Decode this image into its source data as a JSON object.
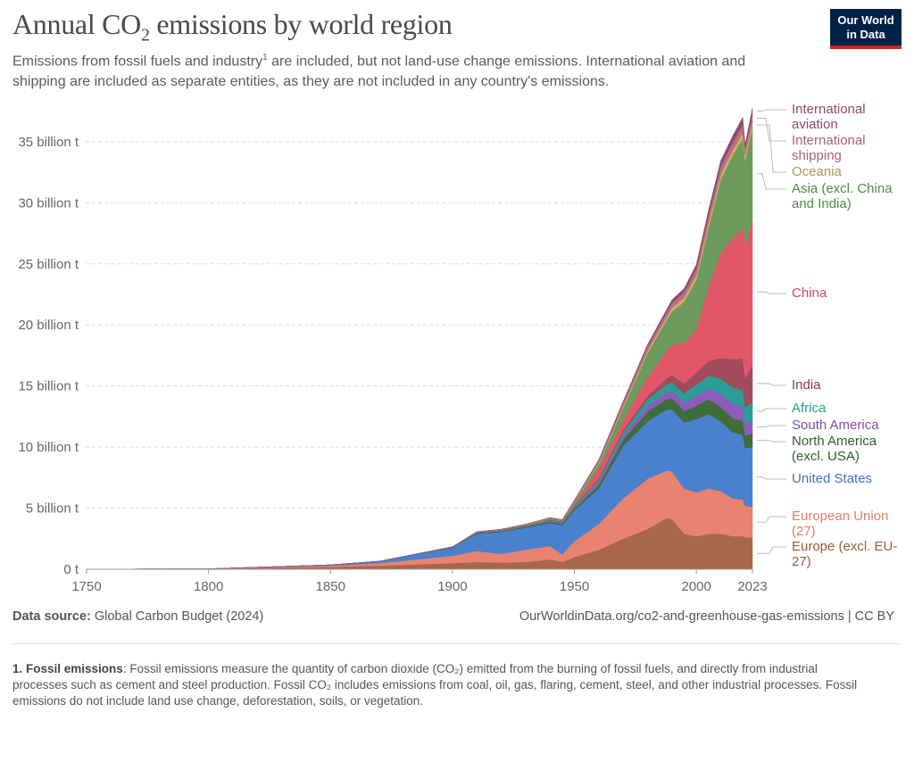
{
  "header": {
    "title_pre": "Annual CO",
    "title_sub": "2",
    "title_post": " emissions by world region",
    "subtitle_a": "Emissions from fossil fuels and industry",
    "subtitle_sup": "1",
    "subtitle_b": " are included, but not land-use change emissions. International aviation and shipping are included as separate entities, as they are not included in any country's emissions.",
    "logo_line1": "Our World",
    "logo_line2": "in Data",
    "logo_colors": {
      "background": "#002147",
      "accent": "#ce261e"
    }
  },
  "footer": {
    "source_label": "Data source:",
    "source_value": " Global Carbon Budget (2024)",
    "url": "OurWorldinData.org/co2-and-greenhouse-gas-emissions | CC BY",
    "note_label": "1. Fossil emissions",
    "note_text": ": Fossil emissions measure the quantity of carbon dioxide (CO₂) emitted from the burning of fossil fuels, and directly from industrial processes such as cement and steel production. Fossil CO₂ includes emissions from coal, oil, gas, flaring, cement, steel, and other industrial processes. Fossil emissions do not include land use change, deforestation, soils, or vegetation."
  },
  "chart_data": {
    "type": "area",
    "stacked": true,
    "title": "Annual CO₂ emissions by world region",
    "xlabel": "",
    "ylabel": "",
    "unit": "billion t",
    "xlim": [
      1750,
      2023
    ],
    "ylim": [
      0,
      38
    ],
    "grid": "horizontal dashed",
    "legend": "right, labels at series ends",
    "x_ticks": [
      "1750",
      "1800",
      "1850",
      "1900",
      "1950",
      "2000",
      "2023"
    ],
    "y_ticks": [
      "0 t",
      "5 billion t",
      "10 billion t",
      "15 billion t",
      "20 billion t",
      "25 billion t",
      "30 billion t",
      "35 billion t"
    ],
    "x": [
      1750,
      1800,
      1850,
      1870,
      1900,
      1910,
      1920,
      1930,
      1940,
      1945,
      1950,
      1960,
      1970,
      1980,
      1988,
      1990,
      1995,
      2000,
      2005,
      2010,
      2015,
      2019,
      2020,
      2023
    ],
    "series": [
      {
        "name": "Europe (excl. EU-27)",
        "color": "#a9674a",
        "label_color": "#9a5a36",
        "values": [
          0.01,
          0.03,
          0.2,
          0.3,
          0.5,
          0.6,
          0.55,
          0.6,
          0.8,
          0.6,
          1.0,
          1.6,
          2.5,
          3.3,
          4.2,
          4.1,
          2.9,
          2.7,
          2.9,
          2.9,
          2.7,
          2.7,
          2.6,
          2.6
        ]
      },
      {
        "name": "European Union (27)",
        "color": "#e8836f",
        "label_color": "#df7f68",
        "values": [
          0,
          0.01,
          0.1,
          0.2,
          0.6,
          0.9,
          0.7,
          1.0,
          1.1,
          0.6,
          1.3,
          2.1,
          3.3,
          4.1,
          3.9,
          3.9,
          3.7,
          3.6,
          3.7,
          3.5,
          3.1,
          3.0,
          2.6,
          2.5
        ]
      },
      {
        "name": "United States",
        "color": "#4b80cf",
        "label_color": "#3f72c0",
        "values": [
          0,
          0,
          0.05,
          0.15,
          0.66,
          1.4,
          1.8,
          1.8,
          1.9,
          2.4,
          2.5,
          2.9,
          4.3,
          4.7,
          5.0,
          5.1,
          5.4,
          6.0,
          6.1,
          5.7,
          5.4,
          5.3,
          4.7,
          4.9
        ]
      },
      {
        "name": "North America (excl. USA)",
        "color": "#3e6d3a",
        "label_color": "#2f5e2b",
        "values": [
          0,
          0,
          0.01,
          0.01,
          0.03,
          0.06,
          0.07,
          0.08,
          0.1,
          0.12,
          0.15,
          0.3,
          0.5,
          0.8,
          0.85,
          0.9,
          0.95,
          1.1,
          1.2,
          1.2,
          1.15,
          1.15,
          1.05,
          1.1
        ]
      },
      {
        "name": "South America",
        "color": "#8c5bbb",
        "label_color": "#7c4ea8",
        "values": [
          0,
          0,
          0,
          0,
          0.01,
          0.02,
          0.03,
          0.04,
          0.06,
          0.07,
          0.1,
          0.2,
          0.3,
          0.5,
          0.55,
          0.6,
          0.7,
          0.8,
          0.9,
          1.1,
          1.2,
          1.1,
          1.0,
          1.1
        ]
      },
      {
        "name": "Africa",
        "color": "#2a9d96",
        "label_color": "#2a9d8f",
        "values": [
          0,
          0,
          0,
          0,
          0.01,
          0.02,
          0.03,
          0.04,
          0.06,
          0.08,
          0.1,
          0.2,
          0.3,
          0.5,
          0.65,
          0.7,
          0.75,
          0.9,
          1.05,
          1.2,
          1.35,
          1.4,
          1.3,
          1.45
        ]
      },
      {
        "name": "India",
        "color": "#a04b5c",
        "label_color": "#8e3a4e",
        "values": [
          0,
          0,
          0,
          0,
          0.01,
          0.02,
          0.03,
          0.03,
          0.04,
          0.05,
          0.06,
          0.12,
          0.2,
          0.3,
          0.5,
          0.6,
          0.8,
          1.0,
          1.2,
          1.7,
          2.3,
          2.6,
          2.4,
          3.1
        ]
      },
      {
        "name": "China",
        "color": "#e15767",
        "label_color": "#d94b5b",
        "values": [
          0,
          0,
          0,
          0,
          0,
          0.01,
          0.01,
          0.02,
          0.03,
          0.03,
          0.08,
          0.8,
          0.8,
          1.5,
          2.3,
          2.5,
          3.3,
          3.6,
          6.1,
          8.6,
          9.9,
          10.7,
          10.9,
          11.9
        ]
      },
      {
        "name": "Asia (excl. China and India)",
        "color": "#6d9b5d",
        "label_color": "#4f8a45",
        "values": [
          0,
          0,
          0,
          0,
          0.01,
          0.02,
          0.03,
          0.05,
          0.1,
          0.08,
          0.2,
          0.4,
          1.0,
          2.0,
          2.5,
          2.7,
          3.4,
          4.0,
          4.8,
          6.0,
          6.8,
          7.3,
          6.9,
          7.5
        ]
      },
      {
        "name": "Oceania",
        "color": "#d0ab6c",
        "label_color": "#b5915a",
        "values": [
          0,
          0,
          0,
          0,
          0.01,
          0.02,
          0.02,
          0.02,
          0.03,
          0.03,
          0.05,
          0.09,
          0.15,
          0.2,
          0.28,
          0.3,
          0.35,
          0.4,
          0.43,
          0.45,
          0.45,
          0.45,
          0.43,
          0.45
        ]
      },
      {
        "name": "International shipping",
        "color": "#b8707c",
        "label_color": "#a8656f",
        "values": [
          0,
          0,
          0,
          0,
          0,
          0,
          0,
          0,
          0,
          0,
          0.1,
          0.2,
          0.3,
          0.35,
          0.38,
          0.4,
          0.45,
          0.5,
          0.6,
          0.65,
          0.65,
          0.7,
          0.6,
          0.65
        ]
      },
      {
        "name": "International aviation",
        "color": "#8c4a78",
        "label_color": "#8b4a74",
        "values": [
          0,
          0,
          0,
          0,
          0,
          0,
          0,
          0,
          0,
          0,
          0.02,
          0.05,
          0.1,
          0.15,
          0.22,
          0.25,
          0.28,
          0.35,
          0.4,
          0.45,
          0.5,
          0.6,
          0.3,
          0.5
        ]
      }
    ]
  }
}
